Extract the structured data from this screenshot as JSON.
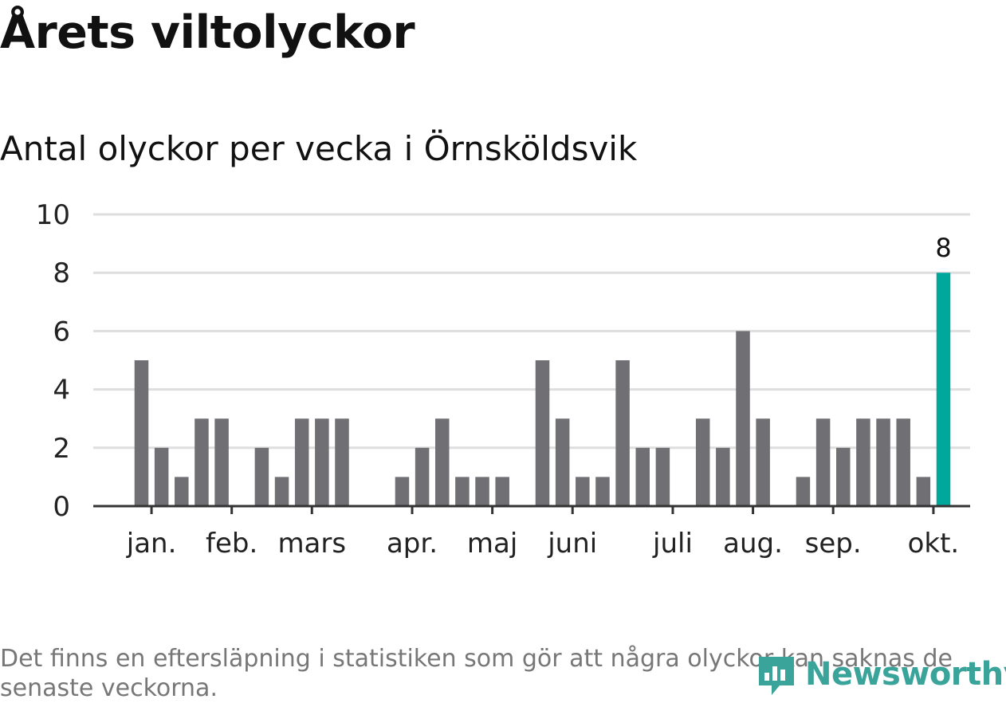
{
  "title": "Årets viltolyckor",
  "subtitle": "Antal olyckor per vecka i Örnsköldsvik",
  "footnote": "Det finns en eftersläpning i statistiken som gör att några olyckor kan saknas de senaste veckorna.",
  "logo": {
    "text": "Newsworthy",
    "color": "#3aa39a",
    "icon": "newsworthy-logo-icon"
  },
  "colors": {
    "bar": "#6f6f74",
    "highlight": "#00a89b",
    "grid": "#dedede",
    "axis": "#333333"
  },
  "chart_data": {
    "type": "bar",
    "title": "Antal olyckor per vecka i Örnsköldsvik",
    "xlabel": "",
    "ylabel": "",
    "ylim": [
      0,
      10
    ],
    "yticks": [
      0,
      2,
      4,
      6,
      8,
      10
    ],
    "grid": true,
    "week_start": 1,
    "values": [
      5,
      2,
      1,
      3,
      3,
      0,
      2,
      1,
      3,
      3,
      3,
      0,
      0,
      1,
      2,
      3,
      1,
      1,
      1,
      0,
      5,
      3,
      1,
      1,
      5,
      2,
      2,
      0,
      3,
      2,
      6,
      3,
      0,
      1,
      3,
      2,
      3,
      3,
      3,
      1,
      8
    ],
    "month_labels": [
      {
        "label": "jan.",
        "position": 0.5
      },
      {
        "label": "feb.",
        "position": 4.5
      },
      {
        "label": "mars",
        "position": 8.5
      },
      {
        "label": "apr.",
        "position": 13.5
      },
      {
        "label": "maj",
        "position": 17.5
      },
      {
        "label": "juni",
        "position": 21.5
      },
      {
        "label": "juli",
        "position": 26.5
      },
      {
        "label": "aug.",
        "position": 30.5
      },
      {
        "label": "sep.",
        "position": 34.5
      },
      {
        "label": "okt.",
        "position": 39.5
      }
    ],
    "highlight": {
      "index": 40,
      "label": "8"
    }
  }
}
